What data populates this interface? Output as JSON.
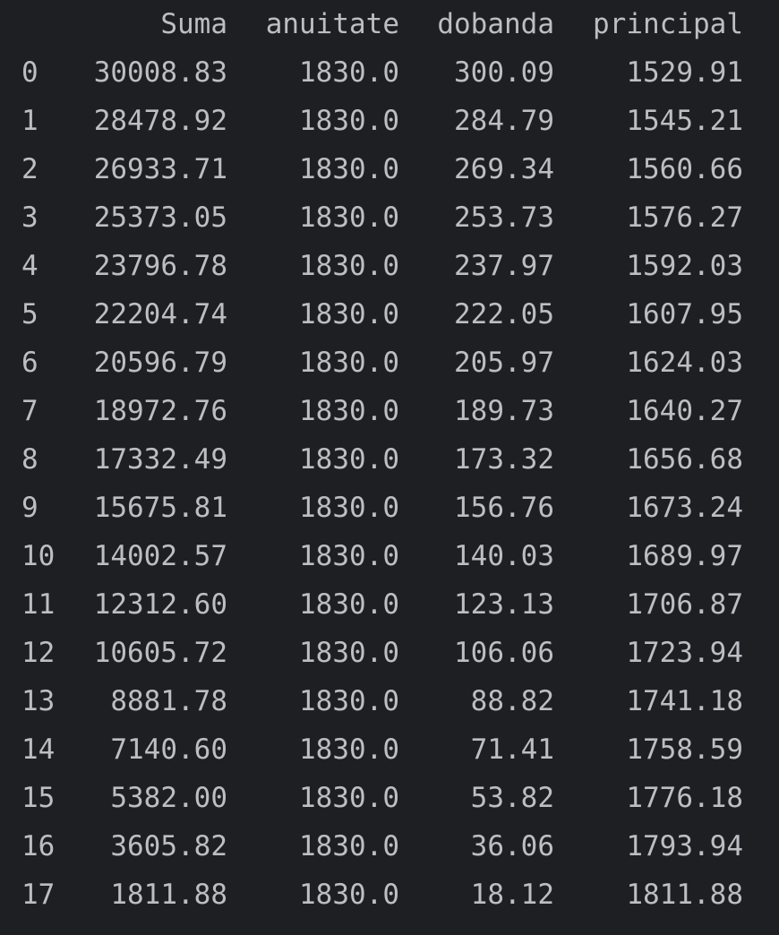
{
  "dataframe": {
    "columns": [
      "Suma",
      "anuitate",
      "dobanda",
      "principal"
    ],
    "rows": [
      {
        "index": "0",
        "Suma": "30008.83",
        "anuitate": "1830.0",
        "dobanda": "300.09",
        "principal": "1529.91"
      },
      {
        "index": "1",
        "Suma": "28478.92",
        "anuitate": "1830.0",
        "dobanda": "284.79",
        "principal": "1545.21"
      },
      {
        "index": "2",
        "Suma": "26933.71",
        "anuitate": "1830.0",
        "dobanda": "269.34",
        "principal": "1560.66"
      },
      {
        "index": "3",
        "Suma": "25373.05",
        "anuitate": "1830.0",
        "dobanda": "253.73",
        "principal": "1576.27"
      },
      {
        "index": "4",
        "Suma": "23796.78",
        "anuitate": "1830.0",
        "dobanda": "237.97",
        "principal": "1592.03"
      },
      {
        "index": "5",
        "Suma": "22204.74",
        "anuitate": "1830.0",
        "dobanda": "222.05",
        "principal": "1607.95"
      },
      {
        "index": "6",
        "Suma": "20596.79",
        "anuitate": "1830.0",
        "dobanda": "205.97",
        "principal": "1624.03"
      },
      {
        "index": "7",
        "Suma": "18972.76",
        "anuitate": "1830.0",
        "dobanda": "189.73",
        "principal": "1640.27"
      },
      {
        "index": "8",
        "Suma": "17332.49",
        "anuitate": "1830.0",
        "dobanda": "173.32",
        "principal": "1656.68"
      },
      {
        "index": "9",
        "Suma": "15675.81",
        "anuitate": "1830.0",
        "dobanda": "156.76",
        "principal": "1673.24"
      },
      {
        "index": "10",
        "Suma": "14002.57",
        "anuitate": "1830.0",
        "dobanda": "140.03",
        "principal": "1689.97"
      },
      {
        "index": "11",
        "Suma": "12312.60",
        "anuitate": "1830.0",
        "dobanda": "123.13",
        "principal": "1706.87"
      },
      {
        "index": "12",
        "Suma": "10605.72",
        "anuitate": "1830.0",
        "dobanda": "106.06",
        "principal": "1723.94"
      },
      {
        "index": "13",
        "Suma": "8881.78",
        "anuitate": "1830.0",
        "dobanda": "88.82",
        "principal": "1741.18"
      },
      {
        "index": "14",
        "Suma": "7140.60",
        "anuitate": "1830.0",
        "dobanda": "71.41",
        "principal": "1758.59"
      },
      {
        "index": "15",
        "Suma": "5382.00",
        "anuitate": "1830.0",
        "dobanda": "53.82",
        "principal": "1776.18"
      },
      {
        "index": "16",
        "Suma": "3605.82",
        "anuitate": "1830.0",
        "dobanda": "36.06",
        "principal": "1793.94"
      },
      {
        "index": "17",
        "Suma": "1811.88",
        "anuitate": "1830.0",
        "dobanda": "18.12",
        "principal": "1811.88"
      }
    ]
  },
  "colors": {
    "background": "#1e1f22",
    "text": "#bcbec4"
  }
}
